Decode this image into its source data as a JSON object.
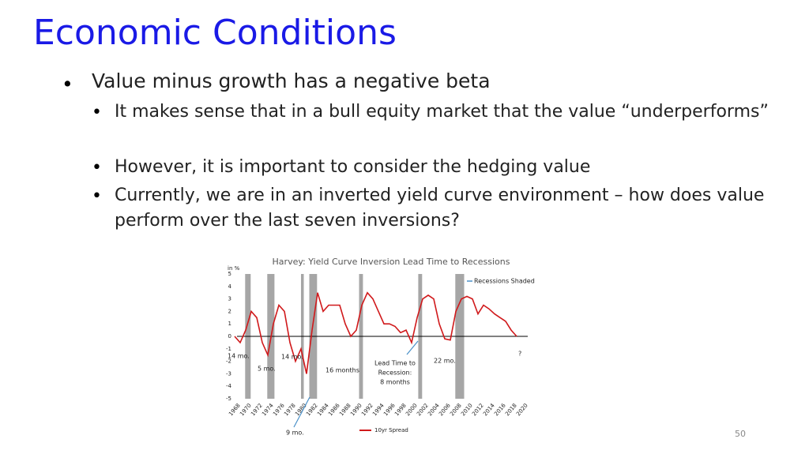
{
  "slide": {
    "title": "Economic Conditions",
    "bullets": [
      {
        "level": 1,
        "text": "Value minus growth has a negative beta"
      },
      {
        "level": 2,
        "text": "It makes sense that in a bull equity market that the value “underperforms”"
      },
      {
        "level": 2,
        "text": "However, it is important to consider the hedging value"
      },
      {
        "level": 2,
        "text": "Currently, we are in an inverted yield curve environment – how does value perform over the last seven inversions?"
      }
    ],
    "page_number": "50"
  },
  "chart_data": {
    "type": "line",
    "title": "Harvey: Yield Curve Inversion Lead Time to Recessions",
    "y_label": "in %",
    "x": [
      1968,
      1969,
      1970,
      1971,
      1972,
      1973,
      1974,
      1975,
      1976,
      1977,
      1978,
      1979,
      1980,
      1981,
      1982,
      1983,
      1984,
      1985,
      1986,
      1987,
      1988,
      1989,
      1990,
      1991,
      1992,
      1993,
      1994,
      1995,
      1996,
      1997,
      1998,
      1999,
      2000,
      2001,
      2002,
      2003,
      2004,
      2005,
      2006,
      2007,
      2008,
      2009,
      2010,
      2011,
      2012,
      2013,
      2014,
      2015,
      2016,
      2017,
      2018,
      2019
    ],
    "series": [
      {
        "name": "10yr Spread",
        "color": "#d0191b",
        "values": [
          0.0,
          -0.5,
          0.5,
          2.0,
          1.5,
          -0.5,
          -1.5,
          1.0,
          2.5,
          2.0,
          -0.5,
          -2.0,
          -1.0,
          -3.0,
          0.5,
          3.5,
          2.0,
          2.5,
          2.5,
          2.5,
          1.0,
          0.0,
          0.5,
          2.5,
          3.5,
          3.0,
          2.0,
          1.0,
          1.0,
          0.8,
          0.3,
          0.5,
          -0.5,
          1.5,
          3.0,
          3.3,
          3.0,
          1.0,
          -0.2,
          -0.3,
          2.0,
          3.0,
          3.2,
          3.0,
          1.8,
          2.5,
          2.2,
          1.8,
          1.5,
          1.2,
          0.5,
          0.0
        ]
      }
    ],
    "recessions": [
      [
        1969.9,
        1970.9
      ],
      [
        1973.9,
        1975.2
      ],
      [
        1980.0,
        1980.5
      ],
      [
        1981.5,
        1982.9
      ],
      [
        1990.5,
        1991.2
      ],
      [
        2001.2,
        2001.9
      ],
      [
        2007.9,
        2009.5
      ]
    ],
    "recession_color": "#a6a6a6",
    "recession_label": "Recessions Shaded",
    "xlim": [
      1967,
      2021
    ],
    "xticks": [
      1968,
      1970,
      1972,
      1974,
      1976,
      1978,
      1980,
      1982,
      1984,
      1986,
      1988,
      1990,
      1992,
      1994,
      1996,
      1998,
      2000,
      2002,
      2004,
      2006,
      2008,
      2010,
      2012,
      2014,
      2016,
      2018,
      2020
    ],
    "ylim": [
      -5,
      5
    ],
    "yticks": [
      -5,
      -4,
      -3,
      -2,
      -1,
      0,
      1,
      2,
      3,
      4,
      5
    ],
    "annotations": {
      "a1": "14 mo.",
      "a2": "5 mo.",
      "a3": "14 mo.",
      "a4": "16 months",
      "lead": [
        "Lead Time to",
        "Recession:",
        "8 months"
      ],
      "a5": "22 mo.",
      "a6": "9 mo.",
      "a7": "?"
    }
  }
}
